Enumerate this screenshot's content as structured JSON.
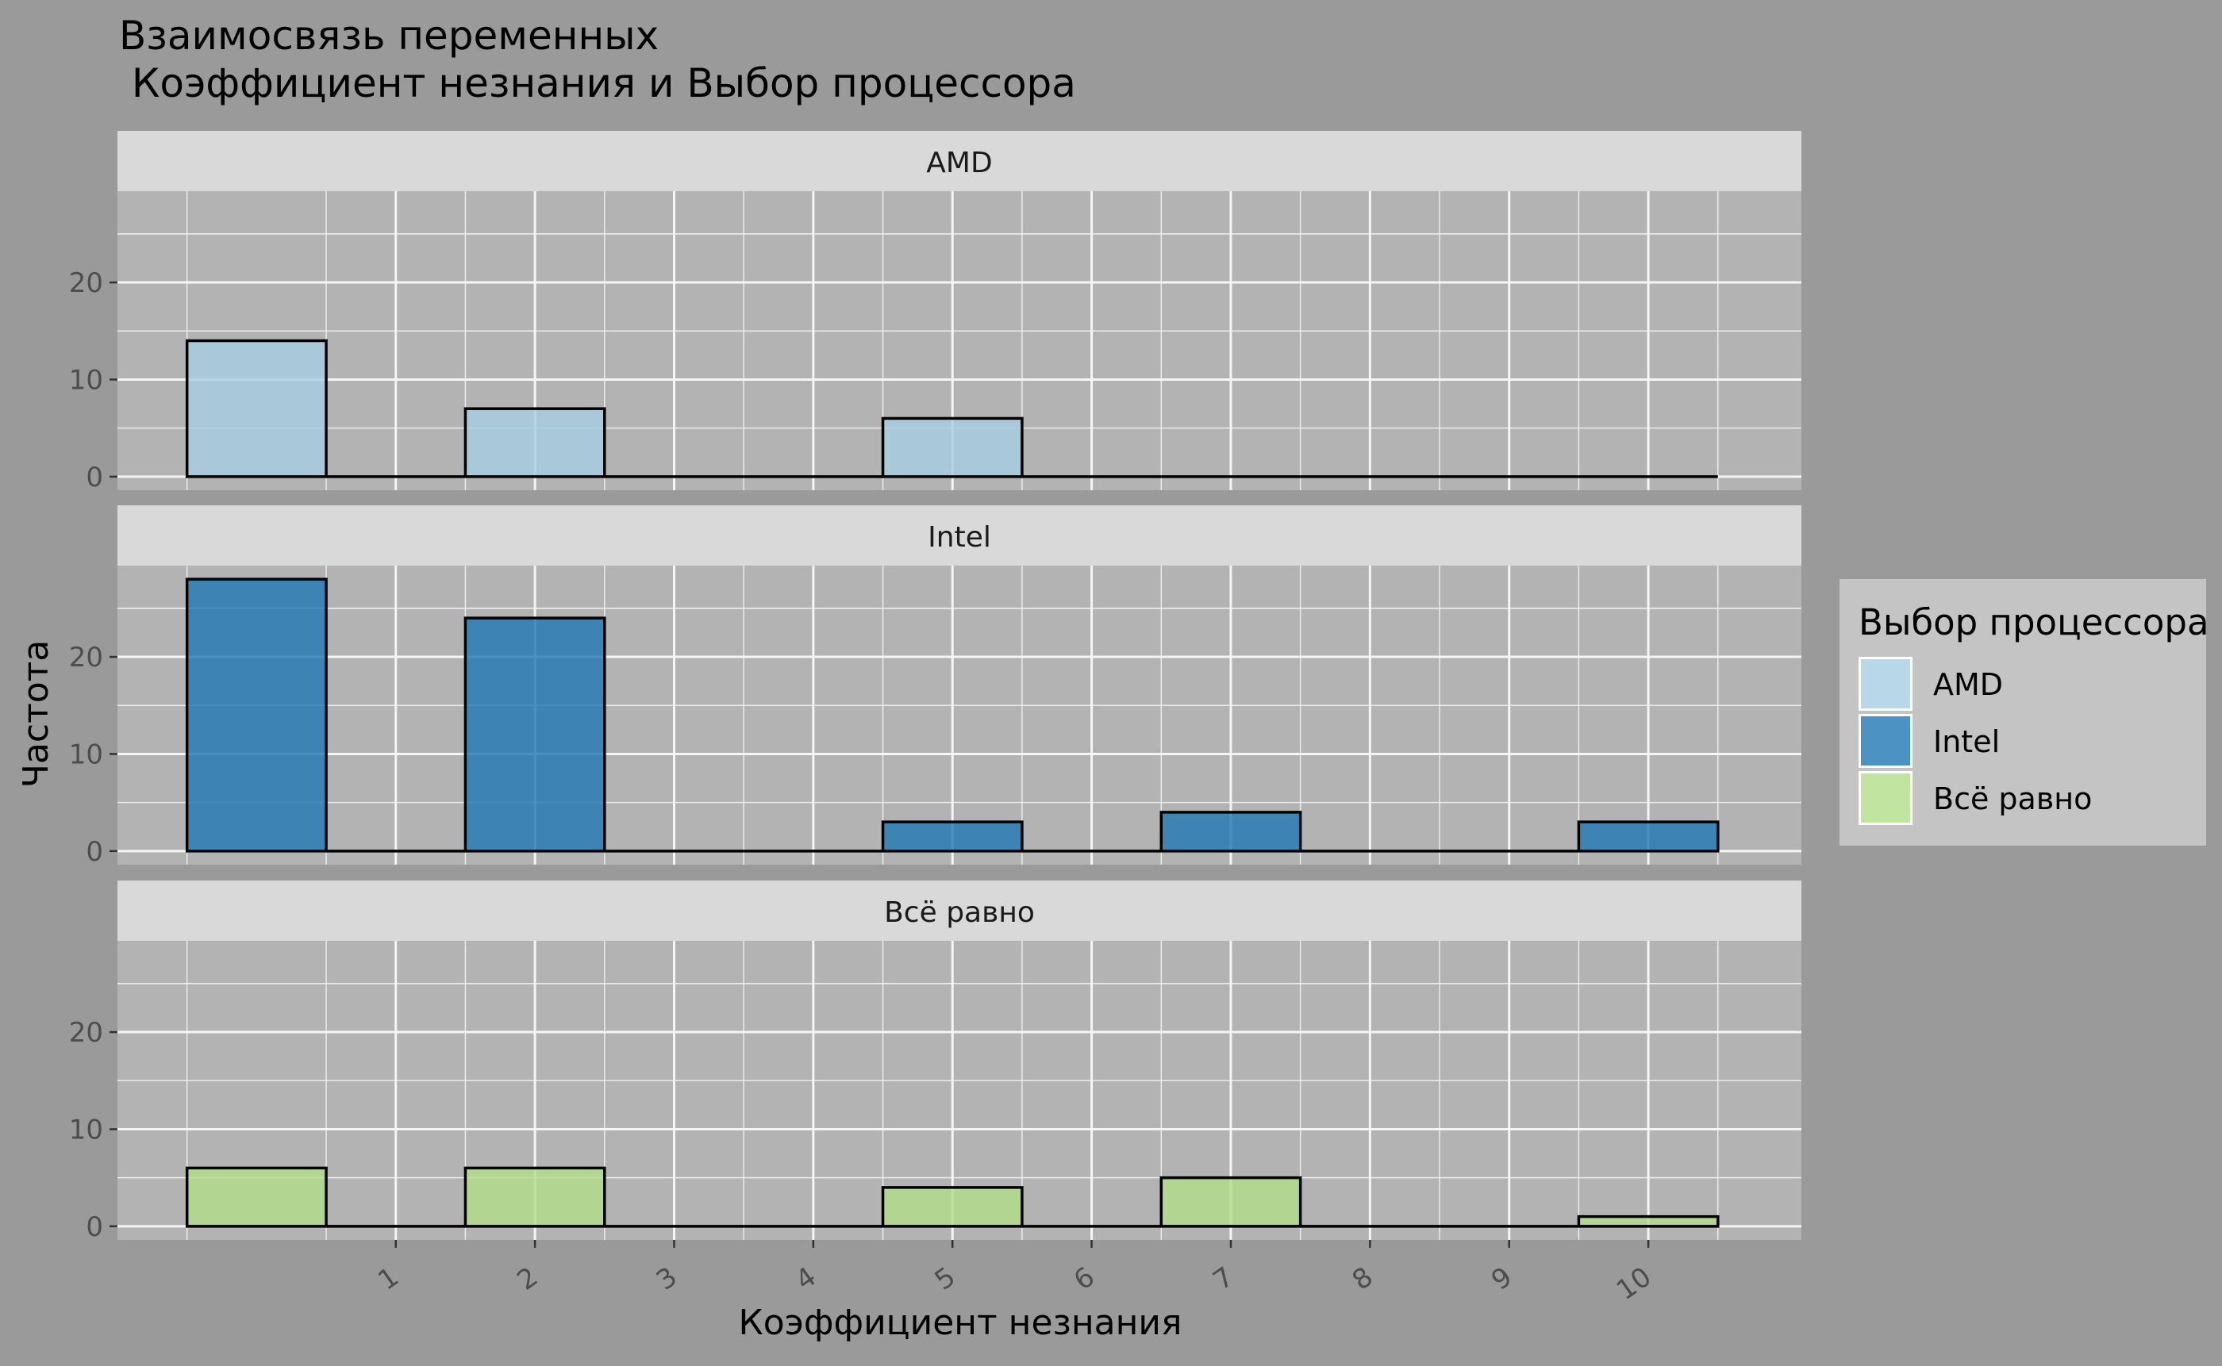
{
  "chart_data": {
    "type": "bar",
    "title_line1": "Взаимосвязь переменных",
    "title_line2": " Коэффициент незнания и Выбор процессора",
    "xlabel": "Коэффициент незнания",
    "ylabel": "Частота",
    "x_ticks": [
      1,
      2,
      3,
      4,
      5,
      6,
      7,
      8,
      9,
      10
    ],
    "xlim": [
      -1.0,
      11.1
    ],
    "y_ticks": [
      0,
      10,
      20
    ],
    "ylim": [
      -1.4,
      29.4
    ],
    "bins": [
      -0.5,
      0.5,
      1.5,
      2.5,
      3.5,
      4.5,
      5.5,
      6.5,
      7.5,
      8.5,
      9.5,
      10.5
    ],
    "grid": true,
    "legend_title": "Выбор процессора",
    "legend_position": "right",
    "panels": [
      {
        "name": "AMD",
        "color": "#a6cee3",
        "values": [
          14,
          0,
          7,
          0,
          0,
          6,
          0,
          0,
          0,
          0,
          0
        ]
      },
      {
        "name": "Intel",
        "color": "#1f78b4",
        "values": [
          28,
          0,
          24,
          0,
          0,
          3,
          0,
          4,
          0,
          0,
          3
        ]
      },
      {
        "name": "Всё равно",
        "color": "#b2df8a",
        "values": [
          6,
          0,
          6,
          0,
          0,
          4,
          0,
          5,
          0,
          0,
          1
        ]
      }
    ]
  }
}
